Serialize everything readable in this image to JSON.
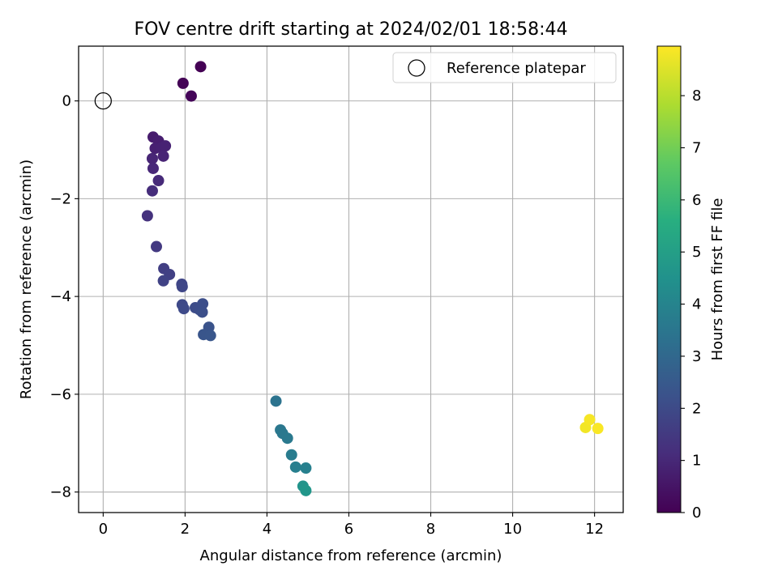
{
  "chart_data": {
    "type": "scatter",
    "title": "FOV centre drift starting at 2024/02/01 18:58:44",
    "xlabel": "Angular distance from reference (arcmin)",
    "ylabel": "Rotation from reference (arcmin)",
    "xlim": [
      -0.6,
      12.7
    ],
    "ylim": [
      -8.42,
      1.12
    ],
    "xticks": [
      0,
      2,
      4,
      6,
      8,
      10,
      12
    ],
    "yticks": [
      0,
      -2,
      -4,
      -6,
      -8
    ],
    "xtick_labels": [
      "0",
      "2",
      "4",
      "6",
      "8",
      "10",
      "12"
    ],
    "ytick_labels": [
      "0",
      "−2",
      "−4",
      "−6",
      "−8"
    ],
    "grid": true,
    "legend": {
      "placement": "upper-right",
      "entries": [
        "Reference platepar"
      ]
    },
    "colorbar": {
      "label": "Hours from first FF file",
      "colormap": "viridis",
      "range": [
        0,
        8.95
      ],
      "ticks": [
        0,
        1,
        2,
        3,
        4,
        5,
        6,
        7,
        8
      ],
      "tick_labels": [
        "0",
        "1",
        "2",
        "3",
        "4",
        "5",
        "6",
        "7",
        "8"
      ]
    },
    "reference_point": {
      "x": 0,
      "y": 0
    },
    "points": [
      {
        "x": 2.38,
        "y": 0.7,
        "hours": 0.0
      },
      {
        "x": 1.95,
        "y": 0.36,
        "hours": 0.05
      },
      {
        "x": 2.15,
        "y": 0.1,
        "hours": 0.1
      },
      {
        "x": 1.22,
        "y": -0.74,
        "hours": 0.7
      },
      {
        "x": 1.35,
        "y": -0.82,
        "hours": 0.75
      },
      {
        "x": 1.27,
        "y": -0.97,
        "hours": 0.8
      },
      {
        "x": 1.42,
        "y": -0.96,
        "hours": 0.82
      },
      {
        "x": 1.52,
        "y": -0.92,
        "hours": 0.85
      },
      {
        "x": 1.47,
        "y": -1.13,
        "hours": 0.9
      },
      {
        "x": 1.2,
        "y": -1.18,
        "hours": 0.95
      },
      {
        "x": 1.22,
        "y": -1.38,
        "hours": 1.0
      },
      {
        "x": 1.35,
        "y": -1.63,
        "hours": 1.05
      },
      {
        "x": 1.2,
        "y": -1.84,
        "hours": 1.15
      },
      {
        "x": 1.08,
        "y": -2.35,
        "hours": 1.3
      },
      {
        "x": 1.3,
        "y": -2.98,
        "hours": 1.5
      },
      {
        "x": 1.48,
        "y": -3.43,
        "hours": 1.65
      },
      {
        "x": 1.62,
        "y": -3.55,
        "hours": 1.7
      },
      {
        "x": 1.47,
        "y": -3.68,
        "hours": 1.75
      },
      {
        "x": 1.92,
        "y": -3.75,
        "hours": 1.85
      },
      {
        "x": 1.93,
        "y": -3.8,
        "hours": 1.88
      },
      {
        "x": 1.93,
        "y": -4.17,
        "hours": 1.95
      },
      {
        "x": 1.97,
        "y": -4.25,
        "hours": 2.0
      },
      {
        "x": 2.25,
        "y": -4.23,
        "hours": 2.05
      },
      {
        "x": 2.35,
        "y": -4.27,
        "hours": 2.1
      },
      {
        "x": 2.43,
        "y": -4.15,
        "hours": 2.12
      },
      {
        "x": 2.42,
        "y": -4.32,
        "hours": 2.15
      },
      {
        "x": 2.58,
        "y": -4.63,
        "hours": 2.3
      },
      {
        "x": 2.45,
        "y": -4.78,
        "hours": 2.35
      },
      {
        "x": 2.62,
        "y": -4.8,
        "hours": 2.4
      },
      {
        "x": 4.22,
        "y": -6.14,
        "hours": 3.4
      },
      {
        "x": 4.33,
        "y": -6.73,
        "hours": 3.55
      },
      {
        "x": 4.38,
        "y": -6.8,
        "hours": 3.6
      },
      {
        "x": 4.5,
        "y": -6.9,
        "hours": 3.65
      },
      {
        "x": 4.6,
        "y": -7.24,
        "hours": 3.75
      },
      {
        "x": 4.7,
        "y": -7.49,
        "hours": 3.85
      },
      {
        "x": 4.95,
        "y": -7.51,
        "hours": 3.9
      },
      {
        "x": 4.88,
        "y": -7.88,
        "hours": 4.6
      },
      {
        "x": 4.95,
        "y": -7.97,
        "hours": 4.7
      },
      {
        "x": 11.78,
        "y": -6.68,
        "hours": 8.8
      },
      {
        "x": 11.88,
        "y": -6.52,
        "hours": 8.85
      },
      {
        "x": 12.08,
        "y": -6.7,
        "hours": 8.9
      }
    ]
  }
}
